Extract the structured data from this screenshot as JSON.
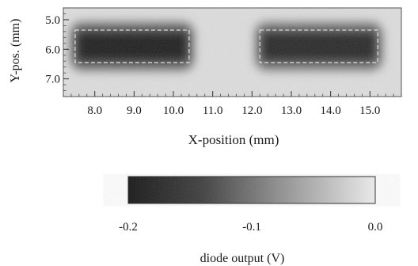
{
  "chart_data": {
    "type": "heatmap",
    "xlabel": "X-position (mm)",
    "ylabel": "Y-pos. (mm)",
    "xlim": [
      7.2,
      15.8
    ],
    "ylim": [
      4.6,
      7.6
    ],
    "x_ticks": [
      "8.0",
      "9.0",
      "10.0",
      "11.0",
      "12.0",
      "13.0",
      "14.0",
      "15.0"
    ],
    "y_ticks": [
      "5.0",
      "6.0",
      "7.0"
    ],
    "regions": [
      {
        "x_range": [
          7.5,
          10.4
        ],
        "y_range": [
          5.35,
          6.45
        ],
        "dashed_outline": true,
        "level": -0.19
      },
      {
        "x_range": [
          12.2,
          15.2
        ],
        "y_range": [
          5.35,
          6.45
        ],
        "dashed_outline": true,
        "level": -0.18
      }
    ],
    "colorbar": {
      "label": "diode output (V)",
      "range": [
        -0.2,
        0.0
      ],
      "ticks": [
        "-0.2",
        "-0.1",
        "0.0"
      ],
      "colormap": [
        "#111111",
        "#eeeeee"
      ]
    },
    "grid": false
  }
}
